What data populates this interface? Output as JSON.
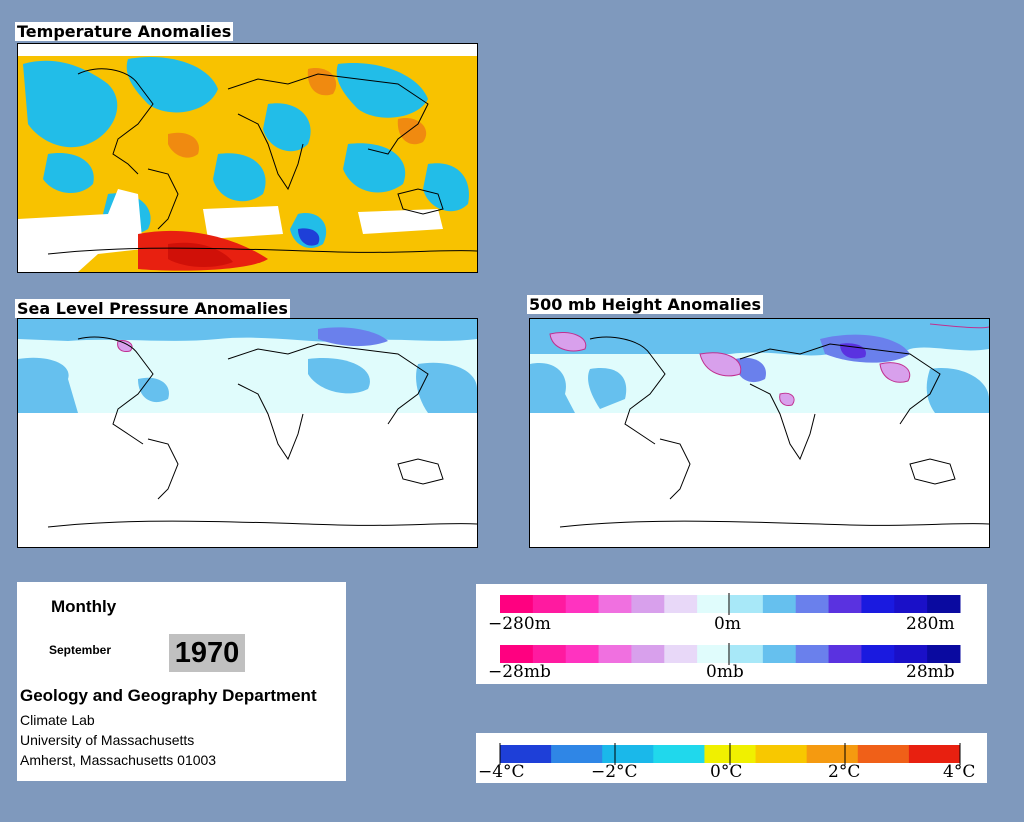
{
  "panels": {
    "temperature": {
      "title": "Temperature Anomalies"
    },
    "slp": {
      "title": "Sea Level Pressure Anomalies"
    },
    "height500": {
      "title": "500 mb Height Anomalies"
    }
  },
  "info": {
    "mode": "Monthly",
    "month": "September",
    "year": "1970",
    "department": "Geology and Geography Department",
    "lab": "Climate Lab",
    "university": "University of Massachusetts",
    "city": "Amherst, Massachusetts 01003"
  },
  "legends": {
    "height": {
      "min": "−280m",
      "mid": "0m",
      "max": "280m"
    },
    "pressure": {
      "min": "−28mb",
      "mid": "0mb",
      "max": "28mb"
    },
    "temperature": {
      "t1": "−4°C",
      "t2": "−2°C",
      "t3": "0°C",
      "t4": "2°C",
      "t5": "4°C"
    }
  },
  "colors": {
    "background": "#7f99bd",
    "temp_scale": [
      "#1e3fd8",
      "#2f86e6",
      "#1ab8ea",
      "#20d8ec",
      "#f0f000",
      "#f8c800",
      "#f59a10",
      "#f06018",
      "#e82010"
    ],
    "anomaly_scale": [
      "#ff0080",
      "#ff1aa0",
      "#ff33c0",
      "#f070e0",
      "#d8a0ec",
      "#e8d8f8",
      "#e0fcfc",
      "#a8e8f8",
      "#66c0ee",
      "#6a80ec",
      "#5a32e0",
      "#1a1ae0",
      "#1a10c8",
      "#0a0aa0"
    ]
  }
}
